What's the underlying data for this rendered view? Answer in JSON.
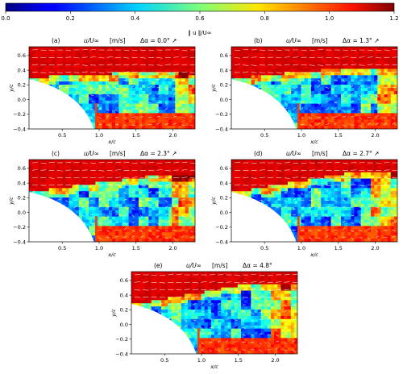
{
  "colorbar": {
    "ticks": [
      0,
      0.2,
      0.4,
      0.6,
      0.8,
      1.0,
      1.2
    ],
    "tick_labels": [
      "0.0",
      "0.2",
      "0.4",
      "0.6",
      "0.8",
      "1.0",
      "1.2"
    ],
    "label": "‖ u ‖/U∞",
    "range": [
      0,
      1.2
    ],
    "colormap": "jet"
  },
  "chart_data": [
    {
      "type": "heatmap",
      "panel": "(a)",
      "title_quantity": "u/U∞",
      "title_unit": "[m/s]",
      "title_delta": "Δα = 0.0° ↗",
      "xlabel": "x/c",
      "ylabel": "y/c",
      "xticks": [
        "0.5",
        "1.0",
        "1.5",
        "2.0"
      ],
      "yticks": [
        "0.6",
        "0.4",
        "0.2",
        "0.0",
        "−0.2",
        "−0.4"
      ],
      "xlim": [
        0.05,
        2.3
      ],
      "ylim": [
        -0.4,
        0.72
      ],
      "separation_strength": 0.25
    },
    {
      "type": "heatmap",
      "panel": "(b)",
      "title_quantity": "u/U∞",
      "title_unit": "[m/s]",
      "title_delta": "Δα = 1.3° ↗",
      "xlabel": "x/c",
      "ylabel": "y/c",
      "xticks": [
        "0.5",
        "1.0",
        "1.5",
        "2.0"
      ],
      "yticks": [
        "0.6",
        "0.4",
        "0.2",
        "0.0",
        "−0.2",
        "−0.4"
      ],
      "xlim": [
        0.05,
        2.3
      ],
      "ylim": [
        -0.4,
        0.72
      ],
      "separation_strength": 0.45
    },
    {
      "type": "heatmap",
      "panel": "(c)",
      "title_quantity": "u/U∞",
      "title_unit": "[m/s]",
      "title_delta": "Δα = 2.3° ↗",
      "xlabel": "x/c",
      "ylabel": "y/c",
      "xticks": [
        "0.5",
        "1.0",
        "1.5",
        "2.0"
      ],
      "yticks": [
        "0.6",
        "0.4",
        "0.2",
        "0.0",
        "−0.2",
        "−0.4"
      ],
      "xlim": [
        0.05,
        2.3
      ],
      "ylim": [
        -0.4,
        0.72
      ],
      "separation_strength": 0.65
    },
    {
      "type": "heatmap",
      "panel": "(d)",
      "title_quantity": "u/U∞",
      "title_unit": "[m/s]",
      "title_delta": "Δα = 2.7° ↗",
      "xlabel": "x/c",
      "ylabel": "y/c",
      "xticks": [
        "0.5",
        "1.0",
        "1.5",
        "2.0"
      ],
      "yticks": [
        "0.6",
        "0.4",
        "0.2",
        "0.0",
        "−0.2",
        "−0.4"
      ],
      "xlim": [
        0.05,
        2.3
      ],
      "ylim": [
        -0.4,
        0.72
      ],
      "separation_strength": 0.85
    },
    {
      "type": "heatmap",
      "panel": "(e)",
      "title_quantity": "u/U∞",
      "title_unit": "[m/s]",
      "title_delta": "Δα = 4.8°",
      "xlabel": "x/c",
      "ylabel": "y/c",
      "xticks": [
        "0.5",
        "1.0",
        "1.5",
        "2.0"
      ],
      "yticks": [
        "0.6",
        "0.4",
        "0.2",
        "0.0",
        "−0.2",
        "−0.4"
      ],
      "xlim": [
        0.05,
        2.3
      ],
      "ylim": [
        -0.4,
        0.72
      ],
      "separation_strength": 0.9
    }
  ]
}
